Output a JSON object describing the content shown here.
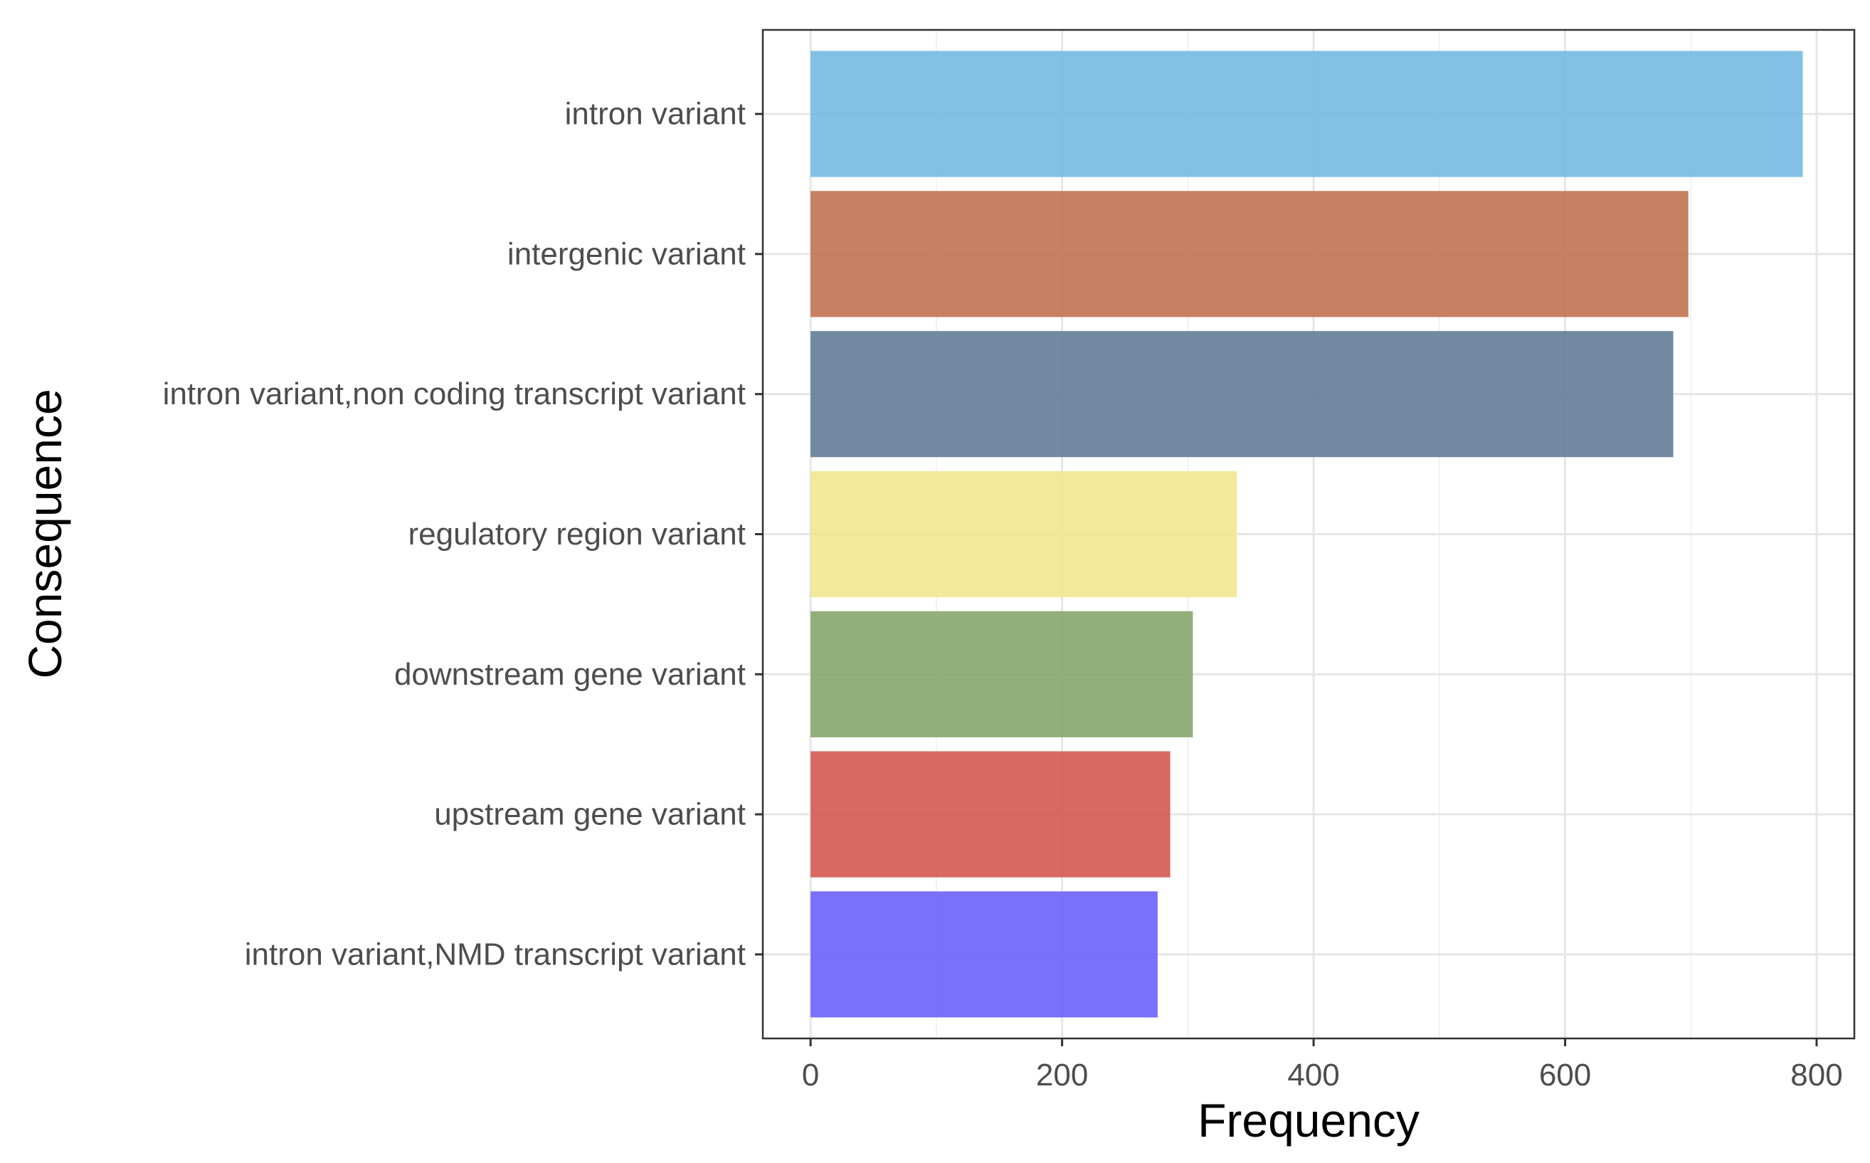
{
  "chart_data": {
    "type": "bar",
    "orientation": "horizontal",
    "title": "",
    "xlabel": "Frequency",
    "ylabel": "Consequence",
    "categories": [
      "intron variant",
      "intergenic variant",
      "intron variant,non coding transcript variant",
      "regulatory region variant",
      "downstream gene variant",
      "upstream gene variant",
      "intron variant,NMD transcript variant"
    ],
    "values": [
      789,
      698,
      686,
      339,
      304,
      286,
      276
    ],
    "colors": [
      "#6cb6e0",
      "#bc6b47",
      "#587592",
      "#f1e58a",
      "#7ea164",
      "#d14d45",
      "#6158fc"
    ],
    "xlim": [
      -38,
      830
    ],
    "xticks": [
      0,
      200,
      400,
      600,
      800
    ],
    "xtick_labels": [
      "0",
      "200",
      "400",
      "600",
      "800"
    ],
    "grid": true,
    "legend": "none",
    "theme": "bw"
  }
}
